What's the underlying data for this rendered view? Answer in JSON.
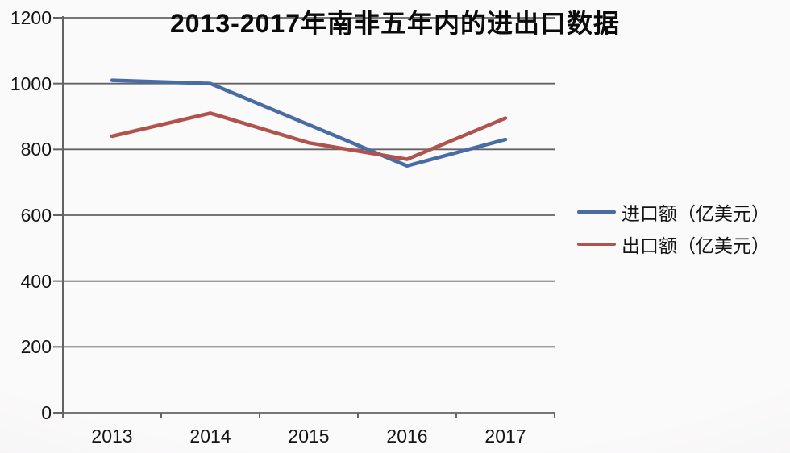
{
  "title": "2013-2017年南非五年内的进出口数据",
  "chart_data": {
    "type": "line",
    "title": "2013-2017年南非五年内的进出口数据",
    "categories": [
      "2013",
      "2014",
      "2015",
      "2016",
      "2017"
    ],
    "series": [
      {
        "name": "进口额（亿美元）",
        "color": "#4a6ca4",
        "values": [
          1010,
          1000,
          875,
          750,
          830
        ]
      },
      {
        "name": "出口额（亿美元）",
        "color": "#b2524d",
        "values": [
          840,
          910,
          820,
          770,
          895
        ]
      }
    ],
    "xlabel": "",
    "ylabel": "",
    "ylim": [
      0,
      1200
    ],
    "yticks": [
      0,
      200,
      400,
      600,
      800,
      1000,
      1200
    ],
    "grid": true,
    "legend_position": "right"
  }
}
